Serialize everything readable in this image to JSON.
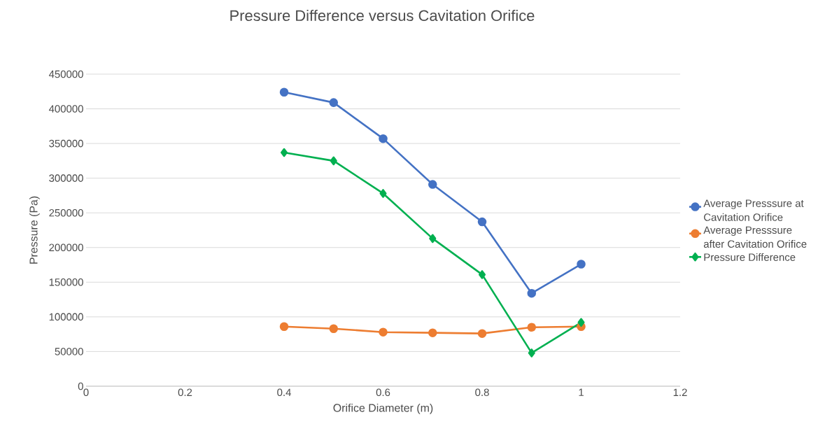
{
  "chart_data": {
    "type": "line",
    "title": "Pressure Difference versus Cavitation Orifice",
    "xlabel": "Orifice Diameter (m)",
    "ylabel": "Pressure (Pa)",
    "x": [
      0.4,
      0.5,
      0.6,
      0.7,
      0.8,
      0.9,
      1.0
    ],
    "series": [
      {
        "name": "Average Presssure at Cavitation Orifice",
        "color": "#4472c4",
        "marker": "circle",
        "values": [
          424000,
          409000,
          357000,
          291000,
          237000,
          134000,
          176000
        ]
      },
      {
        "name": "Average Presssure after Cavitation Orifice",
        "color": "#ed7d31",
        "marker": "circle",
        "values": [
          86000,
          83000,
          78000,
          77000,
          76000,
          85000,
          86000
        ]
      },
      {
        "name": "Pressure Difference",
        "color": "#00b050",
        "marker": "diamond",
        "values": [
          337000,
          325000,
          278000,
          213000,
          161000,
          48000,
          92000
        ]
      }
    ],
    "xlim": [
      0,
      1.2
    ],
    "xticks": [
      0,
      0.2,
      0.4,
      0.6,
      0.8,
      1,
      1.2
    ],
    "ylim": [
      0,
      450000
    ],
    "yticks": [
      0,
      50000,
      100000,
      150000,
      200000,
      250000,
      300000,
      350000,
      400000,
      450000
    ],
    "grid": "y",
    "legend": "right",
    "line_style": "solid"
  }
}
